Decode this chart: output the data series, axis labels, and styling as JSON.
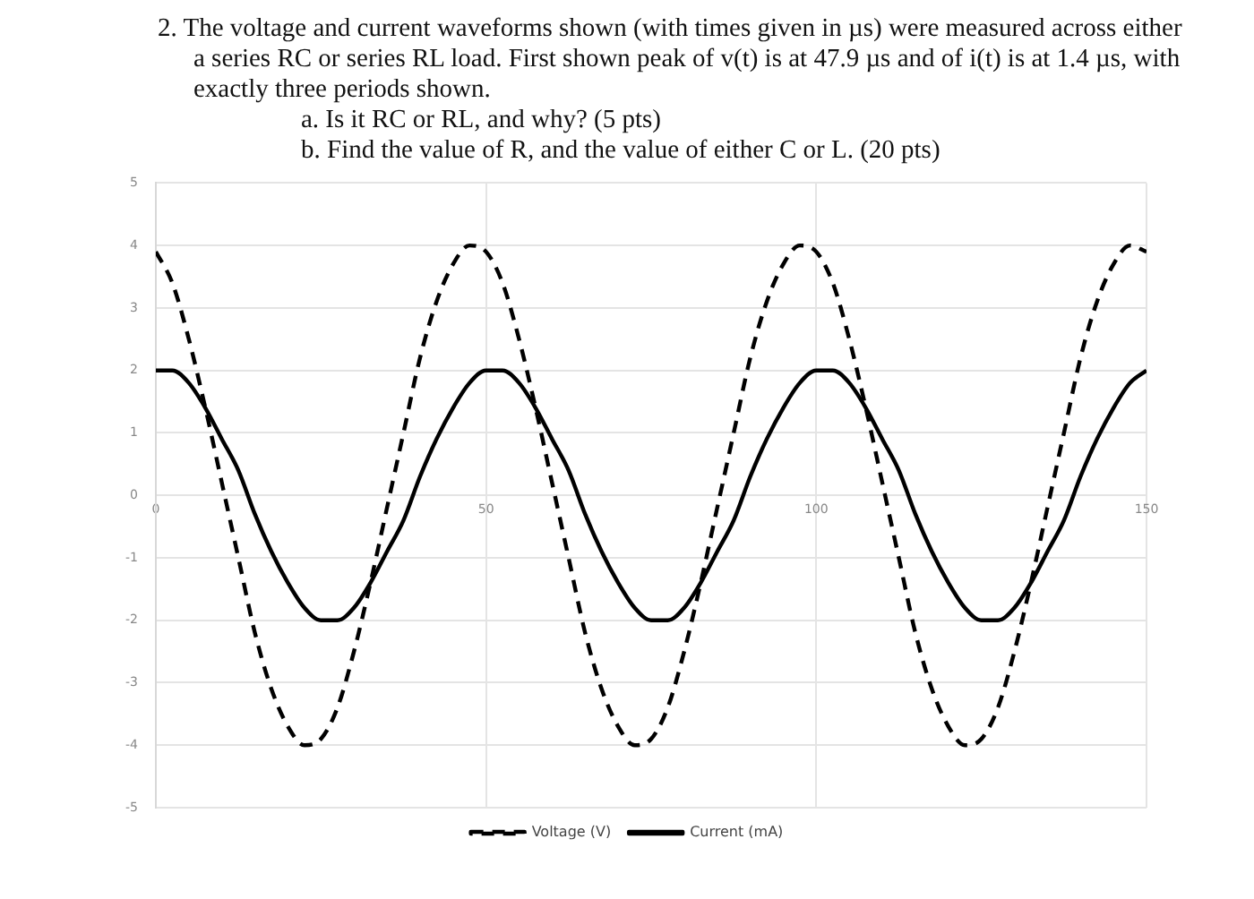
{
  "chart_data": {
    "type": "line",
    "title": "2. The voltage and current waveforms shown (with times given in µs) were measured across either a series RC or series RL load. First shown peak of v(t) is at 47.9 µs and of i(t) is at 1.4 µs, with exactly three periods shown.",
    "annotations": [
      "a. Is it RC or RL, and why? (5 pts)",
      "b. Find the value of R, and the value of either C or L. (20 pts)"
    ],
    "x": [
      0,
      2.5,
      5,
      7.5,
      10,
      12.5,
      15,
      17.5,
      20,
      22.5,
      25,
      27.5,
      30,
      32.5,
      35,
      37.5,
      40,
      42.5,
      45,
      47.5,
      50,
      52.5,
      55,
      57.5,
      60,
      62.5,
      65,
      67.5,
      70,
      72.5,
      75,
      77.5,
      80,
      82.5,
      85,
      87.5,
      90,
      92.5,
      95,
      97.5,
      100,
      102.5,
      105,
      107.5,
      110,
      112.5,
      115,
      117.5,
      120,
      122.5,
      125,
      127.5,
      130,
      132.5,
      135,
      137.5,
      140,
      142.5,
      145,
      147.5,
      150
    ],
    "series": [
      {
        "name": "Voltage (V)",
        "color": "#000000",
        "line_style": "dashed",
        "values": [
          3.9,
          3.4,
          2.5,
          1.4,
          0.2,
          -1.0,
          -2.2,
          -3.1,
          -3.7,
          -4.0,
          -3.9,
          -3.4,
          -2.5,
          -1.4,
          -0.2,
          1.0,
          2.2,
          3.1,
          3.7,
          4.0,
          3.9,
          3.4,
          2.5,
          1.4,
          0.2,
          -1.0,
          -2.2,
          -3.1,
          -3.7,
          -4.0,
          -3.9,
          -3.4,
          -2.5,
          -1.4,
          -0.2,
          1.0,
          2.2,
          3.1,
          3.7,
          4.0,
          3.9,
          3.4,
          2.5,
          1.4,
          0.2,
          -1.0,
          -2.2,
          -3.1,
          -3.7,
          -4.0,
          -3.9,
          -3.4,
          -2.5,
          -1.4,
          -0.2,
          1.0,
          2.2,
          3.1,
          3.7,
          4.0,
          3.9
        ]
      },
      {
        "name": "Current (mA)",
        "color": "#000000",
        "line_style": "solid",
        "values": [
          2.0,
          2.0,
          1.8,
          1.4,
          0.9,
          0.4,
          -0.3,
          -0.9,
          -1.4,
          -1.8,
          -2.0,
          -2.0,
          -1.8,
          -1.4,
          -0.9,
          -0.4,
          0.3,
          0.9,
          1.4,
          1.8,
          2.0,
          2.0,
          1.8,
          1.4,
          0.9,
          0.4,
          -0.3,
          -0.9,
          -1.4,
          -1.8,
          -2.0,
          -2.0,
          -1.8,
          -1.4,
          -0.9,
          -0.4,
          0.3,
          0.9,
          1.4,
          1.8,
          2.0,
          2.0,
          1.8,
          1.4,
          0.9,
          0.4,
          -0.3,
          -0.9,
          -1.4,
          -1.8,
          -2.0,
          -2.0,
          -1.8,
          -1.4,
          -0.9,
          -0.4,
          0.3,
          0.9,
          1.4,
          1.8,
          2.0
        ]
      }
    ],
    "xlim": [
      0,
      150
    ],
    "ylim": [
      -5,
      5
    ],
    "xticks": [
      0,
      50,
      100,
      150
    ],
    "yticks": [
      -5,
      -4,
      -3,
      -2,
      -1,
      0,
      1,
      2,
      3,
      4,
      5
    ],
    "grid": true,
    "legend": "bottom",
    "marker": "none"
  }
}
